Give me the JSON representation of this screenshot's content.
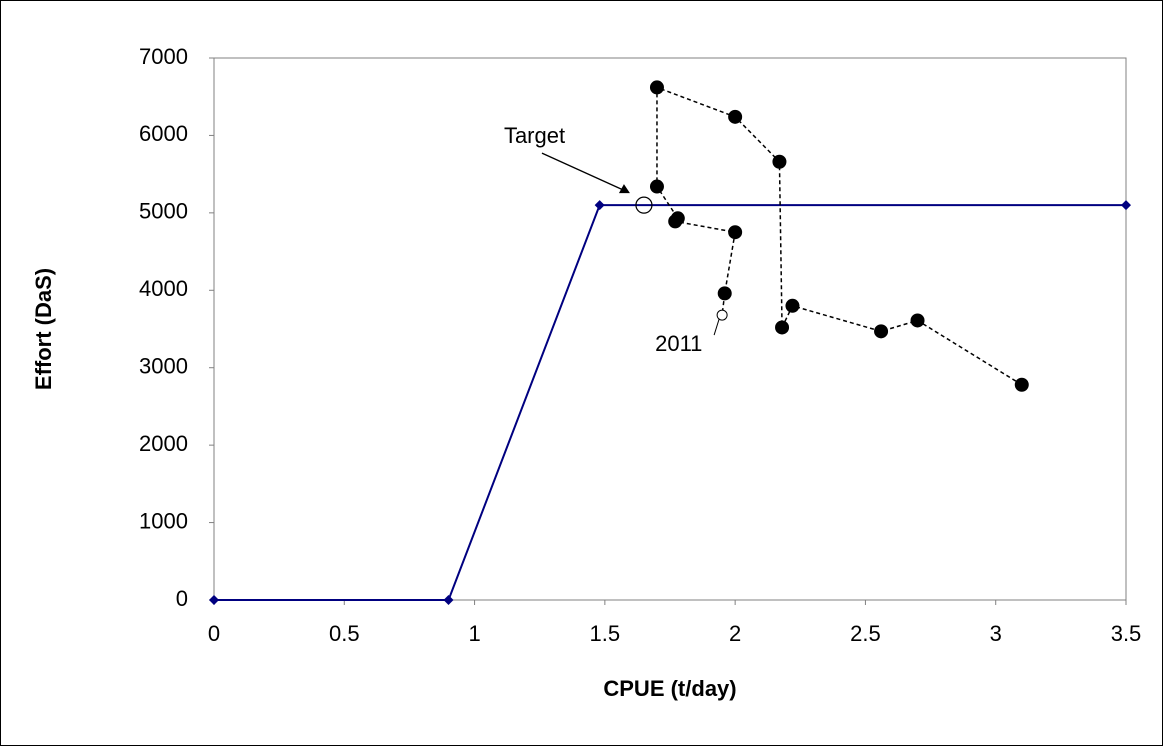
{
  "chart_data": {
    "type": "line",
    "x_label": "CPUE (t/day)",
    "y_label": "Effort (DaS)",
    "xlim": [
      0,
      3.5
    ],
    "xticks": [
      0,
      0.5,
      1,
      1.5,
      2,
      2.5,
      3,
      3.5
    ],
    "ylim": [
      0,
      7000
    ],
    "yticks": [
      0,
      1000,
      2000,
      3000,
      4000,
      5000,
      6000,
      7000
    ],
    "grid": false,
    "series": [
      {
        "color": "#000080",
        "marker": "diamond",
        "line": "solid",
        "x": [
          0,
          0.9,
          1.48,
          3.5
        ],
        "values": [
          0,
          0,
          5100,
          5100
        ]
      },
      {
        "color": "#000000",
        "marker": "circle",
        "line": "dashed",
        "hollow_last": true,
        "x": [
          3.1,
          2.7,
          2.56,
          2.22,
          2.18,
          2.17,
          2.0,
          1.7,
          1.7,
          1.78,
          1.77,
          2.0,
          1.96,
          1.95
        ],
        "values": [
          2780,
          3610,
          3470,
          3800,
          3520,
          5660,
          6240,
          6620,
          5340,
          4930,
          4890,
          4750,
          3960,
          3680
        ]
      }
    ],
    "annotations": [
      {
        "text": "Target",
        "x": 1.65,
        "y": 5100
      },
      {
        "text": "2011"
      }
    ]
  }
}
